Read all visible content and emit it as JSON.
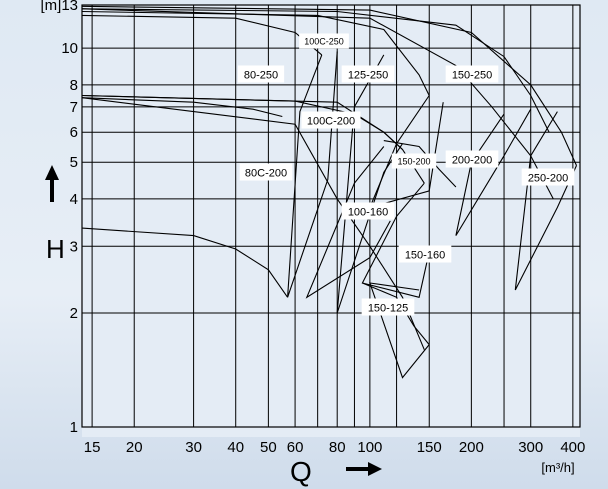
{
  "chart_data": {
    "type": "line",
    "title": "",
    "xlabel": "Q",
    "ylabel": "H",
    "x_unit": "[m³/h]",
    "y_unit": "[m]",
    "x_scale": "log",
    "y_scale": "log",
    "xlim": [
      14,
      420
    ],
    "ylim": [
      1,
      13
    ],
    "grid": true,
    "x_ticks": [
      15,
      20,
      30,
      40,
      50,
      60,
      80,
      100,
      150,
      200,
      300,
      400
    ],
    "x_tick_labels": [
      "15",
      "20",
      "30",
      "40",
      "50",
      "60",
      "80",
      "100",
      "150",
      "200",
      "300",
      "400"
    ],
    "x_minor_grid": [
      70,
      90,
      120,
      250
    ],
    "y_ticks": [
      1,
      2,
      3,
      4,
      5,
      6,
      7,
      8,
      10,
      13
    ],
    "y_tick_labels": [
      "1",
      "2",
      "3",
      "4",
      "5",
      "6",
      "7",
      "8",
      "10",
      "[m]13"
    ],
    "series": [
      {
        "name": "80C-200",
        "curve": [
          [
            14,
            3.35
          ],
          [
            30,
            3.2
          ],
          [
            40,
            2.95
          ],
          [
            50,
            2.6
          ],
          [
            57,
            2.2
          ]
        ]
      },
      {
        "name": "80-250",
        "curve": [
          [
            14,
            7.4
          ],
          [
            30,
            7.2
          ],
          [
            45,
            6.9
          ],
          [
            55,
            6.6
          ]
        ]
      },
      {
        "name": "100C-250",
        "curve": [
          [
            14,
            12.2
          ],
          [
            40,
            12.0
          ],
          [
            60,
            11.0
          ],
          [
            72,
            9.6
          ]
        ]
      },
      {
        "name": "100C-200",
        "curve": [
          [
            14,
            7.5
          ],
          [
            60,
            7.25
          ],
          [
            90,
            6.7
          ],
          [
            110,
            6.0
          ],
          [
            125,
            5.4
          ]
        ]
      },
      {
        "name": "125-250",
        "curve": [
          [
            14,
            12.5
          ],
          [
            70,
            12.2
          ],
          [
            110,
            11.2
          ],
          [
            140,
            8.5
          ],
          [
            150,
            7.5
          ]
        ]
      },
      {
        "name": "100-160",
        "curve": [
          [
            14,
            7.5
          ],
          [
            80,
            7.2
          ],
          [
            110,
            6.0
          ],
          [
            125,
            5.4
          ],
          [
            145,
            4.4
          ]
        ]
      },
      {
        "name": "150-200",
        "curve": [
          [
            110,
            5.7
          ],
          [
            140,
            5.5
          ],
          [
            160,
            4.8
          ],
          [
            180,
            4.3
          ]
        ]
      },
      {
        "name": "150-160",
        "curve": [
          [
            14,
            7.4
          ],
          [
            60,
            6.3
          ],
          [
            80,
            4.0
          ],
          [
            100,
            3.0
          ],
          [
            125,
            2.2
          ],
          [
            145,
            1.6
          ]
        ]
      },
      {
        "name": "150-125",
        "curve": [
          [
            95,
            2.4
          ],
          [
            120,
            2.2
          ],
          [
            135,
            1.85
          ],
          [
            150,
            1.65
          ]
        ]
      },
      {
        "name": "150-250",
        "curve": [
          [
            14,
            12.7
          ],
          [
            80,
            12.5
          ],
          [
            180,
            11.5
          ],
          [
            250,
            9.5
          ],
          [
            300,
            7.5
          ],
          [
            340,
            6.0
          ]
        ]
      },
      {
        "name": "200-200",
        "curve": [
          [
            14,
            12.7
          ],
          [
            100,
            12.0
          ],
          [
            180,
            9.0
          ],
          [
            230,
            7.0
          ],
          [
            300,
            5.2
          ],
          [
            350,
            4.0
          ]
        ]
      },
      {
        "name": "250-200",
        "curve": [
          [
            14,
            12.9
          ],
          [
            100,
            12.6
          ],
          [
            200,
            11.0
          ],
          [
            300,
            8.0
          ],
          [
            370,
            6.0
          ],
          [
            410,
            4.9
          ]
        ]
      }
    ],
    "region_labels": [
      "100C-250",
      "80-250",
      "125-250",
      "150-250",
      "100C-200",
      "150-200",
      "200-200",
      "250-200",
      "80C-200",
      "100-160",
      "150-160",
      "150-125"
    ]
  },
  "axis_titles": {
    "h": "H",
    "q": "Q",
    "y_unit": "[m]",
    "x_unit": "[m³/h]"
  },
  "colors": {
    "line": "#000000",
    "label_bg": "#ffffff",
    "plot_bg": "#e4ecf5"
  }
}
